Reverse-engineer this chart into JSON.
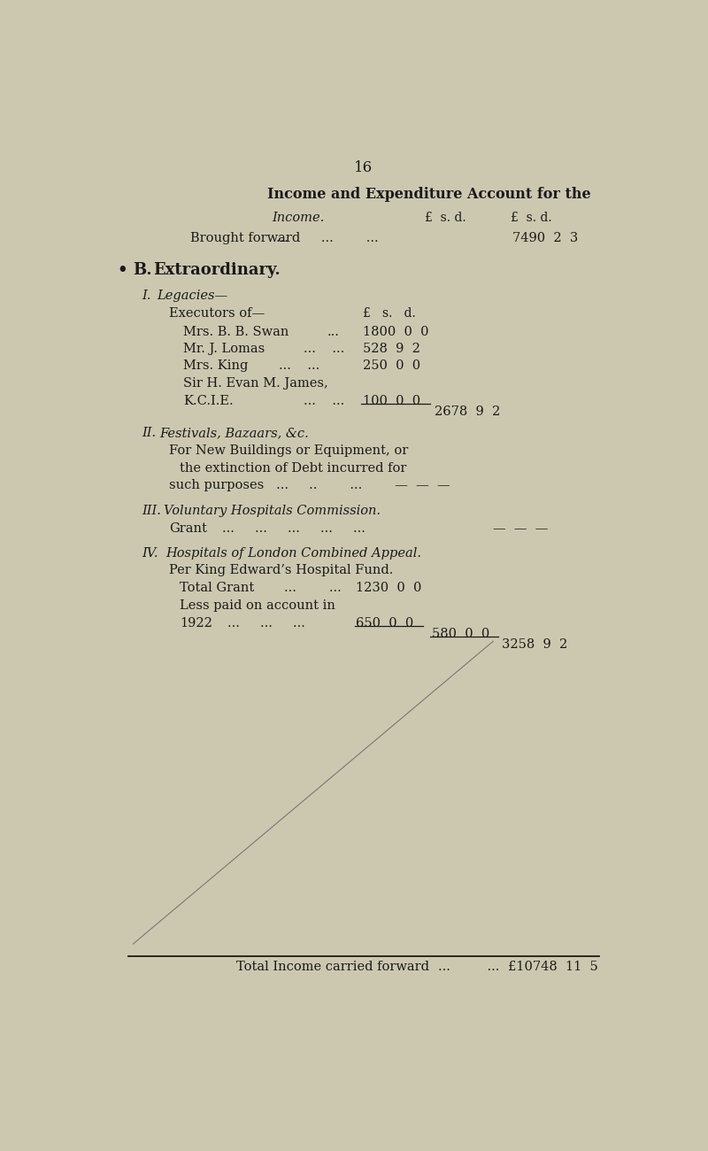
{
  "bg_color": "#ccc8b0",
  "text_color": "#1a1a1a",
  "page_number": "16",
  "title": "Income and Expenditure Account for the",
  "income_label": "Income.",
  "brought_forward_label": "Brought forward",
  "brought_forward_value": "7490  2  3",
  "section_b_bullet": "•",
  "section_b": "B.  Extraordinary.",
  "section_i_label": "I.",
  "section_i": "Legacies—",
  "executors": "Executors of—",
  "exec_col_header": "£   s.   d.",
  "legacy1_name": "Mrs. B. B. Swan",
  "legacy1_dots": "...",
  "legacy1_value": "1800  0  0",
  "legacy2_name": "Mr. J. Lomas",
  "legacy2_value": "528  9  2",
  "legacy3_name": "Mrs. King",
  "legacy3_value": "250  0  0",
  "legacy4_name": "Sir H. Evan M. James,",
  "legacy4b_name": "K.C.I.E.",
  "legacy4_value": "100  0  0",
  "legacies_total": "2678  9  2",
  "section_ii_label": "II.",
  "section_ii": "Festivals, Bazaars, &c.",
  "festivals_desc1": "For New Buildings or Equipment, or",
  "festivals_desc2": "the extinction of Debt incurred for",
  "festivals_desc3": "such purposes",
  "section_iii_label": "III.",
  "section_iii": "Voluntary Hospitals Commission.",
  "grant_label": "Grant",
  "section_iv_label": "IV.",
  "section_iv": "Hospitals of London Combined Appeal.",
  "per_king": "Per King Edward’s Hospital Fund.",
  "total_grant_label": "Total Grant",
  "total_grant_value": "1230  0  0",
  "less_paid": "Less paid on account in",
  "year_1922": "1922",
  "year_value": "650  0  0",
  "net_value": "580  0  0",
  "grand_total": "3258  9  2",
  "total_income_label": "Total Income carried forward",
  "total_income_value": "£10748  11  5",
  "lsd_header1": "£  s. d.",
  "lsd_header2": "£  s. d."
}
